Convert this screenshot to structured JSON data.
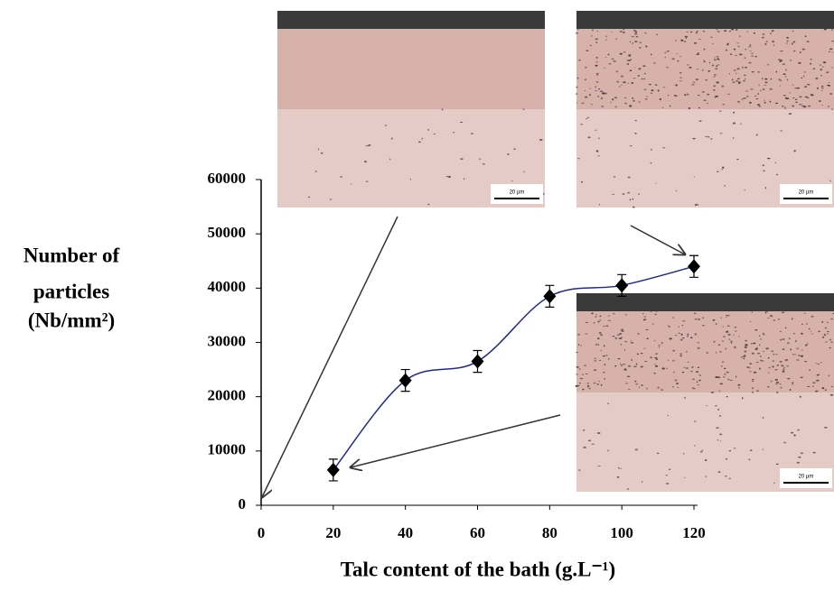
{
  "chart_data": {
    "type": "line",
    "x_label": "Talc content of the bath (g.L⁻¹)",
    "y_label": [
      "Number of",
      "particles",
      "(Nb/mm²)"
    ],
    "x": [
      20,
      40,
      60,
      80,
      100,
      120
    ],
    "series": [
      {
        "values": [
          6500,
          23000,
          26500,
          38500,
          40500,
          44000
        ],
        "errors": [
          2000,
          2000,
          2000,
          2000,
          2000,
          2000
        ],
        "color": "#1f2a8a",
        "marker_color": "#000000"
      }
    ],
    "xlim": [
      0,
      120
    ],
    "xticks": [
      0,
      20,
      40,
      60,
      80,
      100,
      120
    ],
    "ylim": [
      0,
      60000
    ],
    "yticks": [
      0,
      10000,
      20000,
      30000,
      40000,
      50000,
      60000
    ]
  },
  "insets": [
    {
      "scale_label": "20 µm"
    },
    {
      "scale_label": "20 µm"
    },
    {
      "scale_label": "20 µm"
    }
  ]
}
